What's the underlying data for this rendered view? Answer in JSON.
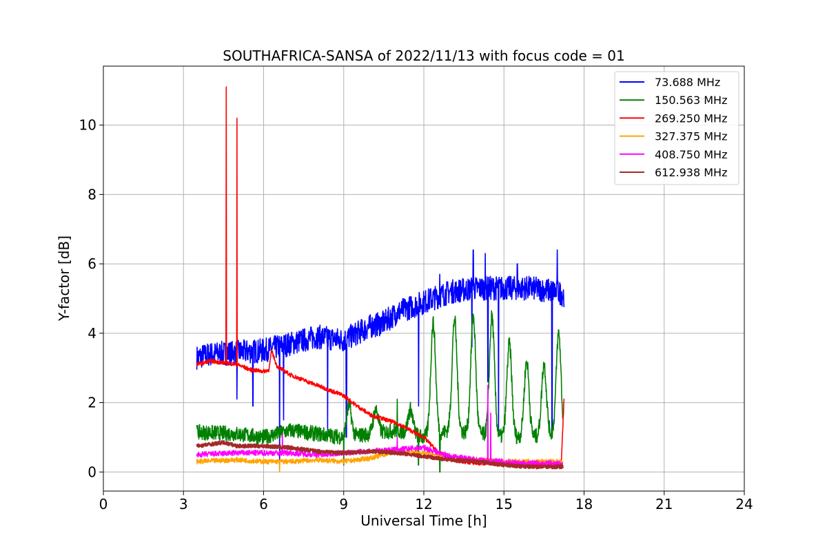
{
  "chart_data": {
    "type": "line",
    "title": "SOUTHAFRICA-SANSA of 2022/11/13 with focus code = 01",
    "xlabel": "Universal Time [h]",
    "ylabel": "Y-factor [dB]",
    "xlim": [
      0,
      24
    ],
    "ylim": [
      -0.55,
      11.7
    ],
    "xticks": [
      0,
      3,
      6,
      9,
      12,
      15,
      18,
      21,
      24
    ],
    "yticks": [
      0,
      2,
      4,
      6,
      8,
      10
    ],
    "grid": true,
    "legend_position": "top-right",
    "series": [
      {
        "name": "73.688 MHz",
        "legend_label": " 73.688 MHz",
        "color": "#0000ff",
        "noise": 0.35,
        "x": [
          3.5,
          4,
          5,
          6,
          7,
          8,
          9,
          10,
          10.5,
          11,
          12,
          13,
          14,
          15,
          16,
          17,
          17.25
        ],
        "y": [
          3.3,
          3.4,
          3.45,
          3.5,
          3.7,
          3.9,
          3.8,
          4.2,
          4.3,
          4.6,
          4.9,
          5.2,
          5.3,
          5.3,
          5.3,
          5.2,
          5.1
        ],
        "spikes": [
          [
            4.6,
            4.5
          ],
          [
            5.0,
            2.1
          ],
          [
            5.6,
            1.9
          ],
          [
            6.6,
            0.0
          ],
          [
            6.75,
            1.5
          ],
          [
            8.4,
            1.2
          ],
          [
            9.1,
            1.0
          ],
          [
            11.8,
            1.9
          ],
          [
            12.6,
            5.7
          ],
          [
            13.85,
            6.4
          ],
          [
            13.8,
            3.6
          ],
          [
            14.3,
            6.3
          ],
          [
            14.4,
            2.6
          ],
          [
            14.8,
            1.2
          ],
          [
            15.5,
            6.0
          ],
          [
            16.8,
            1.0
          ],
          [
            17.0,
            6.4
          ]
        ]
      },
      {
        "name": "150.563 MHz",
        "legend_label": "150.563 MHz",
        "color": "#008000",
        "noise": 0.22,
        "x": [
          3.5,
          5,
          6,
          7,
          8,
          9,
          10,
          11,
          12,
          12.5,
          13,
          14,
          15,
          16,
          17,
          17.2
        ],
        "y": [
          1.15,
          1.1,
          1.0,
          1.2,
          1.1,
          1.0,
          1.1,
          1.2,
          1.0,
          1.1,
          1.2,
          1.1,
          1.0,
          1.0,
          1.1,
          0.7
        ],
        "spikes": [
          [
            9.0,
            0.2
          ],
          [
            11.0,
            2.1
          ],
          [
            12.6,
            0.0
          ],
          [
            11.8,
            0.2
          ]
        ],
        "bumps": [
          [
            12.35,
            4.3
          ],
          [
            13.15,
            4.4
          ],
          [
            13.85,
            4.5
          ],
          [
            14.55,
            4.5
          ],
          [
            15.2,
            3.7
          ],
          [
            15.85,
            3.2
          ],
          [
            16.5,
            3.1
          ],
          [
            17.05,
            4.0
          ],
          [
            9.2,
            1.9
          ],
          [
            10.2,
            1.8
          ],
          [
            11.5,
            1.8
          ]
        ]
      },
      {
        "name": "269.250 MHz",
        "legend_label": "269.250 MHz",
        "color": "#ff0000",
        "noise": 0.06,
        "x": [
          3.5,
          4,
          4.5,
          5,
          5.5,
          6,
          6.2,
          6.3,
          6.5,
          7,
          8,
          9,
          9.5,
          10,
          11,
          12,
          12.5,
          13,
          14,
          15,
          16,
          17,
          17.15,
          17.25
        ],
        "y": [
          3.1,
          3.2,
          3.15,
          3.1,
          2.95,
          2.9,
          2.95,
          3.5,
          3.05,
          2.8,
          2.5,
          2.2,
          1.9,
          1.65,
          1.4,
          1.0,
          0.6,
          0.35,
          0.25,
          0.25,
          0.2,
          0.2,
          0.3,
          2.1
        ],
        "spikes": [
          [
            4.6,
            11.1
          ],
          [
            5.0,
            10.2
          ]
        ]
      },
      {
        "name": "327.375 MHz",
        "legend_label": "327.375 MHz",
        "color": "#ffa500",
        "noise": 0.07,
        "x": [
          3.5,
          5,
          6,
          7,
          8,
          9,
          10,
          11,
          12,
          13,
          14,
          15,
          16,
          17,
          17.2
        ],
        "y": [
          0.3,
          0.35,
          0.3,
          0.3,
          0.35,
          0.3,
          0.4,
          0.6,
          0.55,
          0.4,
          0.35,
          0.3,
          0.3,
          0.3,
          0.25
        ],
        "spikes": [
          [
            6.6,
            0.0
          ]
        ]
      },
      {
        "name": "408.750 MHz",
        "legend_label": "408.750 MHz",
        "color": "#ff00ff",
        "noise": 0.08,
        "x": [
          3.5,
          5,
          6,
          7,
          8,
          9,
          10,
          11,
          12,
          13,
          14,
          15,
          16,
          17,
          17.2
        ],
        "y": [
          0.5,
          0.55,
          0.55,
          0.55,
          0.5,
          0.55,
          0.6,
          0.65,
          0.7,
          0.45,
          0.35,
          0.3,
          0.25,
          0.25,
          0.2
        ],
        "spikes": [
          [
            6.7,
            1.1
          ],
          [
            11.0,
            1.0
          ],
          [
            14.4,
            2.5
          ],
          [
            14.5,
            1.7
          ]
        ]
      },
      {
        "name": "612.938 MHz",
        "legend_label": "612.938 MHz",
        "color": "#a52a2a",
        "noise": 0.05,
        "x": [
          3.5,
          4,
          4.5,
          5,
          6,
          7,
          8,
          9,
          10,
          11,
          12,
          13,
          14,
          15,
          16,
          17,
          17.2
        ],
        "y": [
          0.75,
          0.8,
          0.85,
          0.75,
          0.75,
          0.7,
          0.6,
          0.55,
          0.6,
          0.55,
          0.45,
          0.35,
          0.3,
          0.2,
          0.15,
          0.15,
          0.15
        ]
      }
    ]
  }
}
